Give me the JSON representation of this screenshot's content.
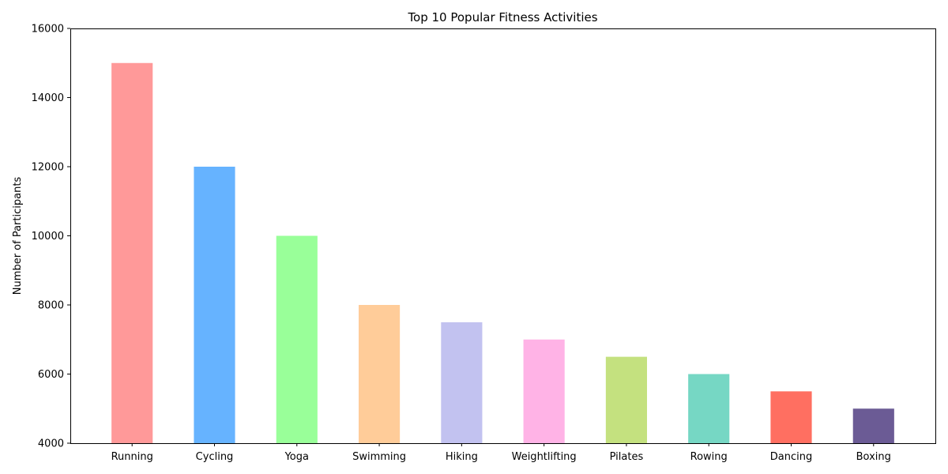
{
  "chart_data": {
    "type": "bar",
    "title": "Top 10 Popular Fitness Activities",
    "xlabel": "",
    "ylabel": "Number of Participants",
    "ylim": [
      4000,
      16000
    ],
    "yticks": [
      4000,
      6000,
      8000,
      10000,
      12000,
      14000,
      16000
    ],
    "ytick_labels": [
      "4000",
      "6000",
      "8000",
      "10000",
      "12000",
      "14000",
      "16000"
    ],
    "categories": [
      "Running",
      "Cycling",
      "Yoga",
      "Swimming",
      "Hiking",
      "Weightlifting",
      "Pilates",
      "Rowing",
      "Dancing",
      "Boxing"
    ],
    "values": [
      15000,
      12000,
      10000,
      8000,
      7500,
      7000,
      6500,
      6000,
      5500,
      5000
    ],
    "colors": [
      "#ff9999",
      "#66b3ff",
      "#99ff99",
      "#ffcc99",
      "#c2c2f0",
      "#ffb3e6",
      "#c4e17f",
      "#76d7c4",
      "#ff6f61",
      "#6b5b95"
    ],
    "grid": false,
    "legend": "none"
  }
}
